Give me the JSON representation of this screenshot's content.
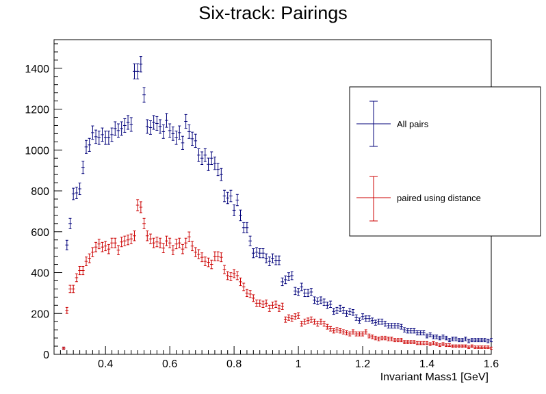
{
  "chart_data": {
    "type": "scatter",
    "title": "Six-track: Pairings",
    "xlabel": "Invariant Mass1 [GeV]",
    "ylabel": "",
    "xlim": [
      0.24,
      1.6
    ],
    "ylim": [
      0,
      1540
    ],
    "xticks": [
      0.4,
      0.6,
      0.8,
      1.0,
      1.2,
      1.4,
      1.6
    ],
    "xtick_labels": [
      "0.4",
      "0.6",
      "0.8",
      "1",
      "1.2",
      "1.4",
      "1.6"
    ],
    "yticks": [
      0,
      200,
      400,
      600,
      800,
      1000,
      1200,
      1400
    ],
    "ytick_labels": [
      "0",
      "200",
      "400",
      "600",
      "800",
      "1000",
      "1200",
      "1400"
    ],
    "grid": false,
    "legend_position": "right",
    "error_bars": true,
    "series": [
      {
        "name": "All pairs",
        "color": "#00007a",
        "points": [
          [
            0.27,
            30
          ],
          [
            0.28,
            535
          ],
          [
            0.29,
            640
          ],
          [
            0.3,
            785
          ],
          [
            0.31,
            790
          ],
          [
            0.32,
            810
          ],
          [
            0.33,
            915
          ],
          [
            0.34,
            1015
          ],
          [
            0.35,
            1025
          ],
          [
            0.36,
            1085
          ],
          [
            0.37,
            1065
          ],
          [
            0.38,
            1060
          ],
          [
            0.39,
            1075
          ],
          [
            0.4,
            1060
          ],
          [
            0.41,
            1060
          ],
          [
            0.42,
            1075
          ],
          [
            0.43,
            1105
          ],
          [
            0.44,
            1095
          ],
          [
            0.45,
            1105
          ],
          [
            0.46,
            1120
          ],
          [
            0.47,
            1135
          ],
          [
            0.48,
            1125
          ],
          [
            0.49,
            1385
          ],
          [
            0.5,
            1385
          ],
          [
            0.51,
            1420
          ],
          [
            0.52,
            1270
          ],
          [
            0.53,
            1115
          ],
          [
            0.54,
            1110
          ],
          [
            0.55,
            1135
          ],
          [
            0.56,
            1130
          ],
          [
            0.57,
            1115
          ],
          [
            0.58,
            1090
          ],
          [
            0.59,
            1145
          ],
          [
            0.6,
            1095
          ],
          [
            0.61,
            1080
          ],
          [
            0.62,
            1060
          ],
          [
            0.63,
            1085
          ],
          [
            0.64,
            1035
          ],
          [
            0.65,
            1140
          ],
          [
            0.66,
            1090
          ],
          [
            0.67,
            1055
          ],
          [
            0.68,
            1045
          ],
          [
            0.69,
            975
          ],
          [
            0.7,
            960
          ],
          [
            0.71,
            975
          ],
          [
            0.72,
            930
          ],
          [
            0.73,
            960
          ],
          [
            0.74,
            935
          ],
          [
            0.75,
            905
          ],
          [
            0.76,
            880
          ],
          [
            0.77,
            775
          ],
          [
            0.78,
            765
          ],
          [
            0.79,
            775
          ],
          [
            0.8,
            705
          ],
          [
            0.81,
            755
          ],
          [
            0.82,
            680
          ],
          [
            0.83,
            620
          ],
          [
            0.84,
            620
          ],
          [
            0.85,
            555
          ],
          [
            0.86,
            495
          ],
          [
            0.87,
            500
          ],
          [
            0.88,
            495
          ],
          [
            0.89,
            495
          ],
          [
            0.9,
            470
          ],
          [
            0.91,
            455
          ],
          [
            0.92,
            470
          ],
          [
            0.93,
            460
          ],
          [
            0.94,
            460
          ],
          [
            0.95,
            355
          ],
          [
            0.96,
            365
          ],
          [
            0.97,
            380
          ],
          [
            0.98,
            385
          ],
          [
            0.99,
            310
          ],
          [
            1.0,
            305
          ],
          [
            1.01,
            330
          ],
          [
            1.02,
            300
          ],
          [
            1.03,
            300
          ],
          [
            1.04,
            305
          ],
          [
            1.05,
            265
          ],
          [
            1.06,
            260
          ],
          [
            1.07,
            265
          ],
          [
            1.08,
            255
          ],
          [
            1.09,
            240
          ],
          [
            1.1,
            245
          ],
          [
            1.11,
            210
          ],
          [
            1.12,
            215
          ],
          [
            1.13,
            225
          ],
          [
            1.14,
            215
          ],
          [
            1.15,
            200
          ],
          [
            1.16,
            210
          ],
          [
            1.17,
            205
          ],
          [
            1.18,
            180
          ],
          [
            1.19,
            165
          ],
          [
            1.2,
            185
          ],
          [
            1.21,
            175
          ],
          [
            1.22,
            175
          ],
          [
            1.23,
            165
          ],
          [
            1.24,
            155
          ],
          [
            1.25,
            160
          ],
          [
            1.26,
            160
          ],
          [
            1.27,
            150
          ],
          [
            1.28,
            140
          ],
          [
            1.29,
            140
          ],
          [
            1.3,
            140
          ],
          [
            1.31,
            140
          ],
          [
            1.32,
            135
          ],
          [
            1.33,
            120
          ],
          [
            1.34,
            115
          ],
          [
            1.35,
            115
          ],
          [
            1.36,
            115
          ],
          [
            1.37,
            105
          ],
          [
            1.38,
            105
          ],
          [
            1.39,
            105
          ],
          [
            1.4,
            90
          ],
          [
            1.41,
            95
          ],
          [
            1.42,
            85
          ],
          [
            1.43,
            85
          ],
          [
            1.44,
            80
          ],
          [
            1.45,
            85
          ],
          [
            1.46,
            80
          ],
          [
            1.47,
            70
          ],
          [
            1.48,
            75
          ],
          [
            1.49,
            75
          ],
          [
            1.5,
            70
          ],
          [
            1.51,
            70
          ],
          [
            1.52,
            75
          ],
          [
            1.53,
            65
          ],
          [
            1.54,
            70
          ],
          [
            1.55,
            70
          ],
          [
            1.56,
            70
          ],
          [
            1.57,
            70
          ],
          [
            1.58,
            70
          ],
          [
            1.59,
            65
          ],
          [
            1.6,
            70
          ]
        ]
      },
      {
        "name": "paired using distance",
        "color": "#cc0000",
        "points": [
          [
            0.27,
            30
          ],
          [
            0.28,
            215
          ],
          [
            0.29,
            320
          ],
          [
            0.3,
            320
          ],
          [
            0.31,
            375
          ],
          [
            0.32,
            410
          ],
          [
            0.33,
            410
          ],
          [
            0.34,
            455
          ],
          [
            0.35,
            470
          ],
          [
            0.36,
            500
          ],
          [
            0.37,
            525
          ],
          [
            0.38,
            540
          ],
          [
            0.39,
            525
          ],
          [
            0.4,
            530
          ],
          [
            0.41,
            515
          ],
          [
            0.42,
            545
          ],
          [
            0.43,
            545
          ],
          [
            0.44,
            510
          ],
          [
            0.45,
            550
          ],
          [
            0.46,
            555
          ],
          [
            0.47,
            560
          ],
          [
            0.48,
            565
          ],
          [
            0.49,
            580
          ],
          [
            0.5,
            730
          ],
          [
            0.51,
            720
          ],
          [
            0.52,
            640
          ],
          [
            0.53,
            580
          ],
          [
            0.54,
            565
          ],
          [
            0.55,
            545
          ],
          [
            0.56,
            550
          ],
          [
            0.57,
            545
          ],
          [
            0.58,
            520
          ],
          [
            0.59,
            555
          ],
          [
            0.6,
            545
          ],
          [
            0.61,
            510
          ],
          [
            0.62,
            540
          ],
          [
            0.63,
            545
          ],
          [
            0.64,
            515
          ],
          [
            0.65,
            545
          ],
          [
            0.66,
            575
          ],
          [
            0.67,
            530
          ],
          [
            0.68,
            500
          ],
          [
            0.69,
            490
          ],
          [
            0.7,
            475
          ],
          [
            0.71,
            455
          ],
          [
            0.72,
            450
          ],
          [
            0.73,
            440
          ],
          [
            0.74,
            480
          ],
          [
            0.75,
            480
          ],
          [
            0.76,
            475
          ],
          [
            0.77,
            415
          ],
          [
            0.78,
            385
          ],
          [
            0.79,
            380
          ],
          [
            0.8,
            395
          ],
          [
            0.81,
            385
          ],
          [
            0.82,
            355
          ],
          [
            0.83,
            330
          ],
          [
            0.84,
            300
          ],
          [
            0.85,
            295
          ],
          [
            0.86,
            275
          ],
          [
            0.87,
            250
          ],
          [
            0.88,
            250
          ],
          [
            0.89,
            245
          ],
          [
            0.9,
            250
          ],
          [
            0.91,
            225
          ],
          [
            0.92,
            240
          ],
          [
            0.93,
            245
          ],
          [
            0.94,
            225
          ],
          [
            0.95,
            235
          ],
          [
            0.96,
            170
          ],
          [
            0.97,
            180
          ],
          [
            0.98,
            175
          ],
          [
            0.99,
            185
          ],
          [
            1.0,
            190
          ],
          [
            1.01,
            150
          ],
          [
            1.02,
            160
          ],
          [
            1.03,
            165
          ],
          [
            1.04,
            170
          ],
          [
            1.05,
            160
          ],
          [
            1.06,
            150
          ],
          [
            1.07,
            160
          ],
          [
            1.08,
            150
          ],
          [
            1.09,
            135
          ],
          [
            1.1,
            125
          ],
          [
            1.11,
            115
          ],
          [
            1.12,
            120
          ],
          [
            1.13,
            115
          ],
          [
            1.14,
            110
          ],
          [
            1.15,
            105
          ],
          [
            1.16,
            100
          ],
          [
            1.17,
            110
          ],
          [
            1.18,
            100
          ],
          [
            1.19,
            100
          ],
          [
            1.2,
            100
          ],
          [
            1.21,
            110
          ],
          [
            1.22,
            90
          ],
          [
            1.23,
            85
          ],
          [
            1.24,
            80
          ],
          [
            1.25,
            75
          ],
          [
            1.26,
            80
          ],
          [
            1.27,
            80
          ],
          [
            1.28,
            75
          ],
          [
            1.29,
            75
          ],
          [
            1.3,
            70
          ],
          [
            1.31,
            70
          ],
          [
            1.32,
            70
          ],
          [
            1.33,
            60
          ],
          [
            1.34,
            60
          ],
          [
            1.35,
            60
          ],
          [
            1.36,
            60
          ],
          [
            1.37,
            55
          ],
          [
            1.38,
            55
          ],
          [
            1.39,
            55
          ],
          [
            1.4,
            55
          ],
          [
            1.41,
            50
          ],
          [
            1.42,
            55
          ],
          [
            1.43,
            50
          ],
          [
            1.44,
            45
          ],
          [
            1.45,
            50
          ],
          [
            1.46,
            45
          ],
          [
            1.47,
            45
          ],
          [
            1.48,
            40
          ],
          [
            1.49,
            40
          ],
          [
            1.5,
            40
          ],
          [
            1.51,
            40
          ],
          [
            1.52,
            40
          ],
          [
            1.53,
            35
          ],
          [
            1.54,
            40
          ],
          [
            1.55,
            35
          ],
          [
            1.56,
            35
          ],
          [
            1.57,
            35
          ],
          [
            1.58,
            35
          ],
          [
            1.59,
            35
          ],
          [
            1.6,
            30
          ]
        ]
      }
    ]
  }
}
